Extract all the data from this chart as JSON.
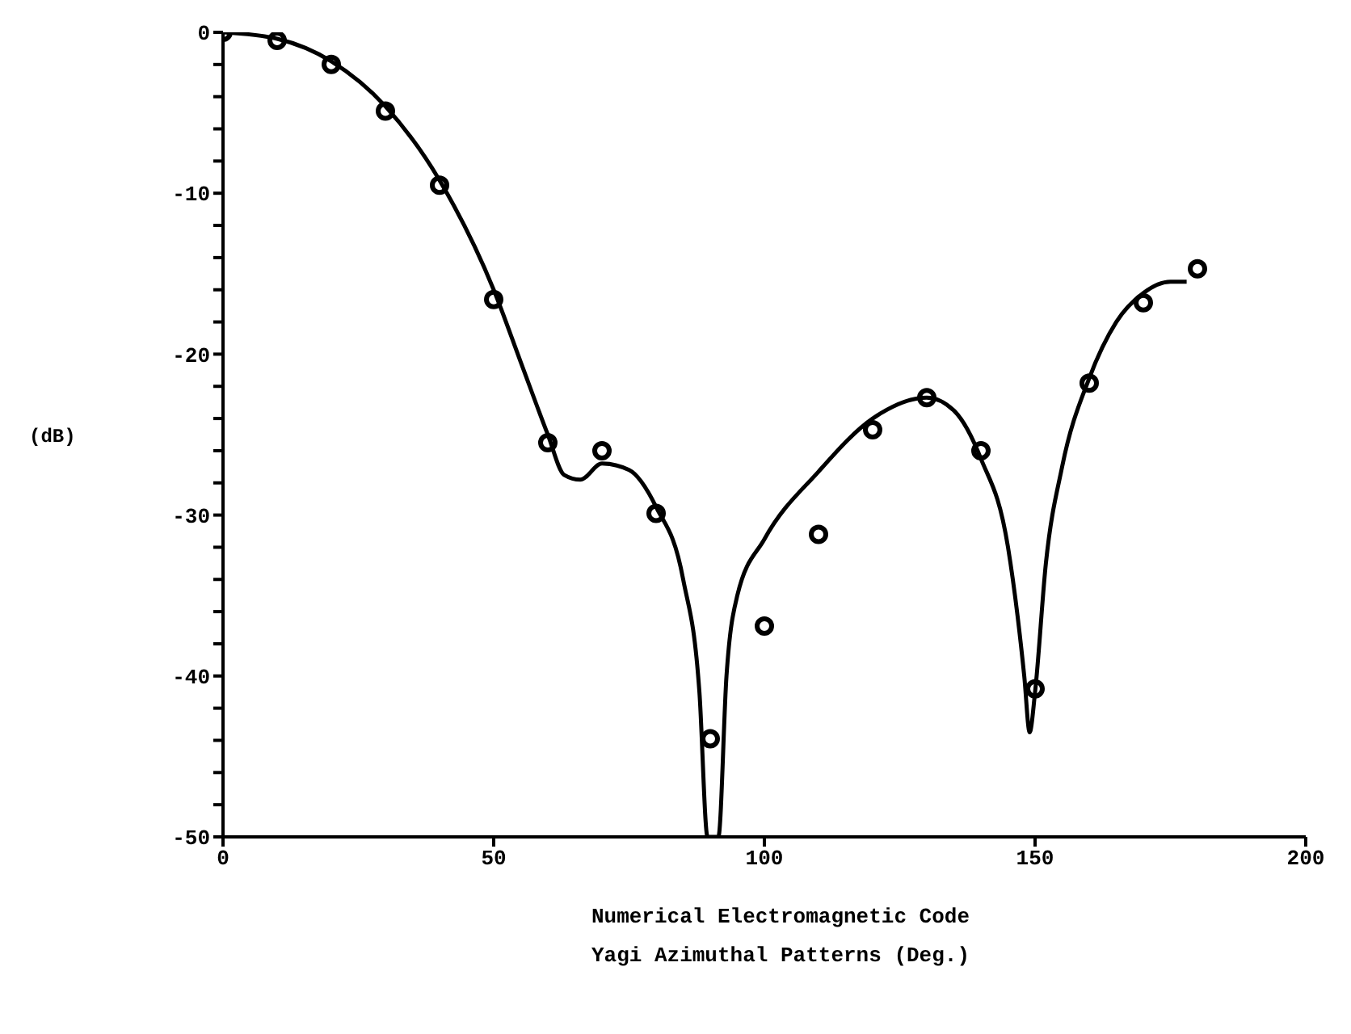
{
  "chart_data": {
    "type": "line",
    "xlabel": "Yagi Azimuthal Patterns (Deg.)",
    "ylabel": "(dB)",
    "annotations": [
      "Numerical Electromagnetic Code"
    ],
    "xlim": [
      0,
      200
    ],
    "xticks": [
      0,
      50,
      100,
      150,
      200
    ],
    "ylim": [
      -50,
      0
    ],
    "yticks": [
      0,
      {
        "value": -2,
        "label": null
      },
      {
        "value": -4,
        "label": null
      },
      {
        "value": -6,
        "label": null
      },
      {
        "value": -8,
        "label": null
      },
      -10,
      {
        "value": -12,
        "label": null
      },
      {
        "value": -14,
        "label": null
      },
      {
        "value": -16,
        "label": null
      },
      {
        "value": -18,
        "label": null
      },
      -20,
      {
        "value": -22,
        "label": null
      },
      {
        "value": -24,
        "label": null
      },
      {
        "value": -26,
        "label": null
      },
      {
        "value": -28,
        "label": null
      },
      -30,
      {
        "value": -32,
        "label": null
      },
      {
        "value": -34,
        "label": null
      },
      {
        "value": -36,
        "label": null
      },
      {
        "value": -38,
        "label": null
      },
      -40,
      {
        "value": -42,
        "label": null
      },
      {
        "value": -44,
        "label": null
      },
      {
        "value": -46,
        "label": null
      },
      {
        "value": -48,
        "label": null
      },
      -50
    ],
    "grid": false,
    "series": [
      {
        "color": "#000000",
        "marker": "none",
        "line_style": "solid",
        "x": [
          0,
          10,
          20,
          30,
          40,
          50,
          55,
          60,
          63,
          66,
          70,
          75,
          80,
          85,
          88,
          89.5,
          91.5,
          93,
          95,
          100,
          110,
          120,
          130,
          135,
          140,
          145,
          148,
          149,
          150,
          152,
          155,
          160,
          165,
          170,
          175,
          178
        ],
        "values": [
          0,
          -0.4,
          -1.8,
          -4.6,
          -9.2,
          -16,
          -20.5,
          -25,
          -27.5,
          -27.8,
          -26.8,
          -27.2,
          -29.5,
          -34,
          -41,
          -50,
          -50,
          -40,
          -35,
          -31.5,
          -27.3,
          -24,
          -22.7,
          -23.5,
          -26.5,
          -32,
          -40,
          -43.5,
          -41,
          -33,
          -27,
          -21.5,
          -18,
          -16.2,
          -15.5,
          -15.5
        ]
      },
      {
        "type": "scatter",
        "color": "#000000",
        "marker": "circle",
        "x": [
          0,
          10,
          20,
          30,
          40,
          50,
          60,
          70,
          80,
          90,
          100,
          110,
          120,
          130,
          140,
          150,
          160,
          170,
          180
        ],
        "values": [
          0,
          -0.5,
          -2,
          -4.9,
          -9.5,
          -16.6,
          -25.5,
          -26,
          -29.9,
          -43.9,
          -36.9,
          -31.2,
          -24.7,
          -22.7,
          -26,
          -40.8,
          -21.8,
          -16.8,
          -14.7
        ]
      }
    ]
  }
}
